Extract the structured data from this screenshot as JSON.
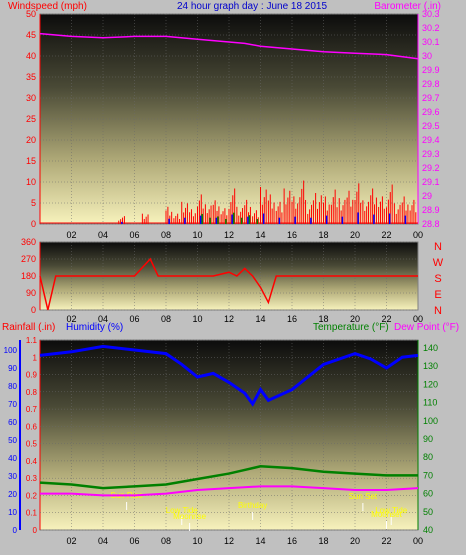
{
  "panel1": {
    "title": "24 hour graph day : June 18 2015",
    "left_label": "Windspeed (mph)",
    "right_label": "Barometer (.in)",
    "left_ticks": [
      "0",
      "5",
      "10",
      "15",
      "20",
      "25",
      "30",
      "35",
      "40",
      "45",
      "50"
    ],
    "right_ticks": [
      "28.8",
      "28.9",
      "29",
      "29.1",
      "29.2",
      "29.3",
      "29.4",
      "29.5",
      "29.6",
      "29.7",
      "29.8",
      "29.9",
      "30",
      "30.1",
      "30.2",
      "30.3"
    ],
    "x_ticks": [
      "02",
      "04",
      "06",
      "08",
      "10",
      "12",
      "14",
      "16",
      "18",
      "20",
      "22",
      "00"
    ]
  },
  "panel2": {
    "left_ticks": [
      "0",
      "90",
      "180",
      "270",
      "360"
    ],
    "compass": [
      "N",
      "W",
      "S",
      "E",
      "N"
    ],
    "x_ticks": [
      "02",
      "04",
      "06",
      "08",
      "10",
      "12",
      "14",
      "16",
      "18",
      "20",
      "22",
      "00"
    ]
  },
  "panel3": {
    "rain_label": "Rainfall (.in)",
    "humidity_label": "Humidity (%)",
    "temp_label": "Temperature (°F)",
    "dew_label": "Dew Point (°F)",
    "rain_ticks": [
      "0",
      "0.1",
      "0.2",
      "0.3",
      "0.4",
      "0.5",
      "0.6",
      "0.7",
      "0.8",
      "0.9",
      "1",
      "1.1"
    ],
    "hum_ticks": [
      "0",
      "10",
      "20",
      "30",
      "40",
      "50",
      "60",
      "70",
      "80",
      "90",
      "100"
    ],
    "temp_ticks": [
      "40",
      "50",
      "60",
      "70",
      "80",
      "90",
      "100",
      "110",
      "120",
      "130",
      "140"
    ],
    "x_ticks": [
      "02",
      "04",
      "06",
      "08",
      "10",
      "12",
      "14",
      "16",
      "18",
      "20",
      "22",
      "00"
    ],
    "events": [
      "Sun Rise",
      "Low Tide",
      "Moonrise",
      "Birthday",
      "Sun Set",
      "Moonset",
      "Low Tide"
    ]
  },
  "colors": {
    "wind": "#ff0000",
    "gust": "#0000ff",
    "wind_green": "#008800",
    "barometer": "#ff00ff",
    "direction": "#ff0000",
    "humidity": "#0000ff",
    "temperature": "#008000",
    "dewpoint": "#ff00ff",
    "event_text": "#ffff00"
  },
  "chart_data": [
    {
      "type": "line",
      "title": "24 hour graph day : June 18 2015",
      "x_hours": [
        0,
        2,
        4,
        6,
        8,
        10,
        12,
        13,
        14,
        16,
        18,
        20,
        22,
        24
      ],
      "series": [
        {
          "name": "Barometer (.in)",
          "axis": "right",
          "values": [
            30.16,
            30.14,
            30.13,
            30.14,
            30.14,
            30.12,
            30.1,
            30.09,
            30.07,
            30.05,
            30.03,
            30.02,
            30.01,
            29.98
          ]
        },
        {
          "name": "Windspeed (mph)",
          "axis": "left",
          "style": "spikes",
          "hours": [
            5.0,
            6.5,
            8.0,
            8.5,
            9.0,
            9.5,
            10.0,
            10.5,
            11.0,
            11.5,
            12.0,
            12.5,
            13.0,
            13.5,
            14.0,
            14.5,
            15.0,
            15.5,
            16.0,
            16.5,
            17.0,
            17.5,
            18.0,
            18.5,
            19.0,
            19.5,
            20.0,
            20.5,
            21.0,
            21.5,
            22.0,
            22.5,
            23.0,
            23.5
          ],
          "values": [
            2,
            3,
            5,
            3,
            6,
            4,
            8,
            5,
            6,
            4,
            9,
            5,
            7,
            4,
            10,
            8,
            6,
            9,
            7,
            11,
            6,
            9,
            8,
            10,
            7,
            9,
            11,
            6,
            9,
            7,
            10,
            6,
            8,
            7
          ]
        }
      ],
      "ylim_left": [
        0,
        50
      ],
      "ylim_right": [
        28.8,
        30.3
      ]
    },
    {
      "type": "line",
      "series": [
        {
          "name": "Wind Direction",
          "x": [
            0,
            0.5,
            1,
            2,
            4,
            6,
            7,
            7.5,
            8,
            9,
            10,
            11,
            12,
            12.5,
            13,
            13.5,
            14,
            14.5,
            15,
            16,
            18,
            20,
            22,
            24
          ],
          "values": [
            180,
            0,
            180,
            180,
            180,
            180,
            270,
            180,
            180,
            180,
            180,
            180,
            200,
            180,
            220,
            180,
            120,
            40,
            180,
            180,
            180,
            180,
            180,
            180
          ]
        }
      ],
      "ylim": [
        0,
        360
      ]
    },
    {
      "type": "line",
      "series": [
        {
          "name": "Humidity (%)",
          "axis": "humidity",
          "x": [
            0,
            2,
            4,
            6,
            8,
            9,
            10,
            11,
            12,
            13,
            13.5,
            14,
            14.5,
            15,
            16,
            18,
            20,
            21,
            22,
            23,
            24
          ],
          "values": [
            97,
            99,
            102,
            100,
            98,
            92,
            85,
            87,
            82,
            76,
            70,
            78,
            72,
            74,
            78,
            92,
            98,
            95,
            90,
            96,
            97
          ]
        },
        {
          "name": "Temperature (°F)",
          "axis": "temp",
          "x": [
            0,
            2,
            4,
            6,
            8,
            10,
            12,
            13,
            14,
            16,
            18,
            20,
            22,
            24
          ],
          "values": [
            66,
            65,
            63,
            64,
            65,
            68,
            71,
            73,
            75,
            74,
            72,
            71,
            70,
            70
          ]
        },
        {
          "name": "Dew Point (°F)",
          "axis": "temp",
          "x": [
            0,
            2,
            4,
            6,
            8,
            10,
            12,
            14,
            16,
            18,
            20,
            22,
            24
          ],
          "values": [
            60,
            60,
            59,
            59,
            60,
            62,
            63,
            64,
            64,
            63,
            62,
            62,
            63
          ]
        }
      ],
      "ylim_rain": [
        0,
        1.1
      ],
      "ylim_humidity": [
        0,
        100
      ],
      "ylim_temp": [
        40,
        140
      ]
    }
  ]
}
